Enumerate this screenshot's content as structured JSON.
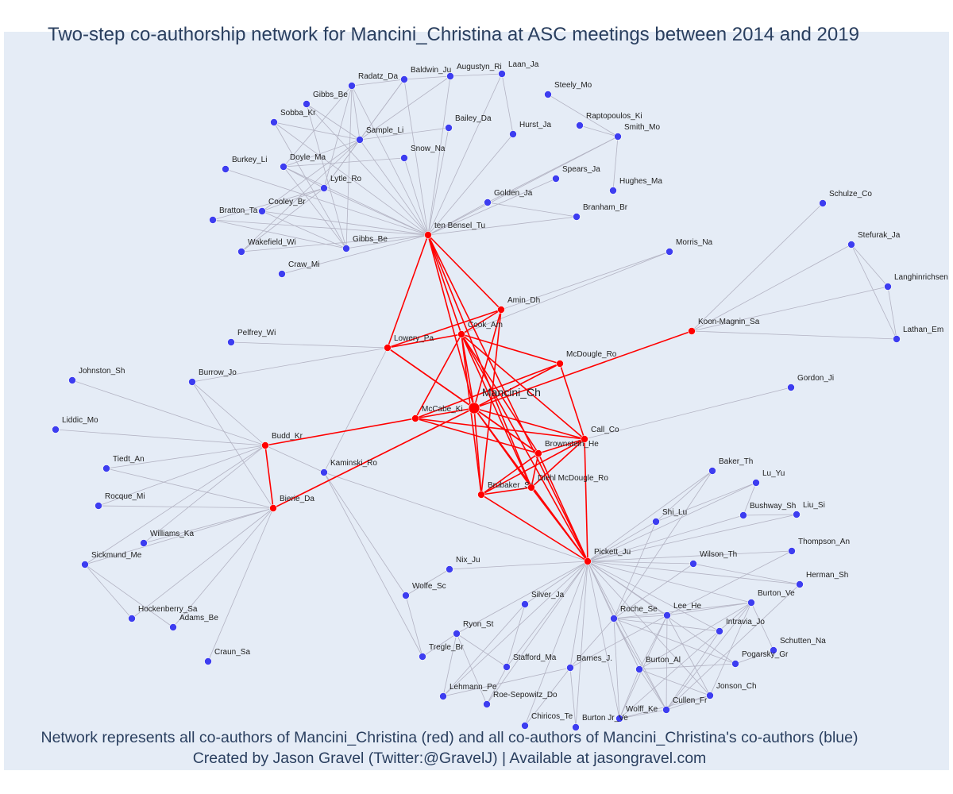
{
  "title": "Two-step co-authorship network for Mancini_Christina at ASC meetings between 2014 and 2019",
  "caption_line1": "Network represents all co-authors of Mancini_Christina (red) and all co-authors of Mancini_Christina's co-authors (blue)",
  "caption_line2": "Created by Jason Gravel (Twitter:@GravelJ) | Available at jasongravel.com",
  "colors": {
    "red": "#ff0000",
    "blue": "#3d3df0",
    "gray_edge": "#b3b3c3",
    "background": "#e5ecf6",
    "text": "#2a3f5f"
  },
  "center_node": "Mancini_Ch",
  "red_nodes": [
    "Mancini_Ch",
    "ten Bensel_Tu",
    "Amin_Dh",
    "Cook_Am",
    "Lowery_Pa",
    "McDougle_Ro",
    "Koon-Magnin_Sa",
    "McCabe_Ki",
    "Call_Co",
    "Brownstein_He",
    "Budd_Kr",
    "Bierie_Da",
    "Brubaker_Sa",
    "Diehl McDougle_Ro",
    "Pickett_Ju"
  ],
  "blue_nodes": [
    "Radatz_Da",
    "Baldwin_Ju",
    "Augustyn_Ri",
    "Laan_Ja",
    "Gibbs_Be",
    "Sobba_Kr",
    "Steely_Mo",
    "Raptopoulos_Ki",
    "Smith_Mo",
    "Bailey_Da",
    "Hurst_Ja",
    "Sample_Li",
    "Snow_Na",
    "Burkey_Li",
    "Doyle_Ma",
    "Spears_Ja",
    "Hughes_Ma",
    "Lytle_Ro",
    "Golden_Ja",
    "Cooley_Br",
    "Bratton_Ta",
    "Branham_Br",
    "Gibbs_Be (2)",
    "Wakefield_Wi",
    "Craw_Mi",
    "Morris_Na",
    "Schulze_Co",
    "Stefurak_Ja",
    "Langhinrichsen",
    "Lathan_Em",
    "Pelfrey_Wi",
    "Johnston_Sh",
    "Burrow_Jo",
    "Gordon_Ji",
    "Liddic_Mo",
    "Tiedt_An",
    "Kaminski_Ro",
    "Rocque_Mi",
    "Williams_Ka",
    "Sickmund_Me",
    "Hockenberry_Sa",
    "Adams_Be",
    "Craun_Sa",
    "Baker_Th",
    "Lu_Yu",
    "Bushway_Sh",
    "Liu_Si",
    "Shi_Lu",
    "Thompson_An",
    "Wilson_Th",
    "Herman_Sh",
    "Nix_Ju",
    "Wolfe_Sc",
    "Burton_Ve",
    "Silver_Ja",
    "Lee_He",
    "Roche_Se",
    "Intravia_Jo",
    "Ryon_St",
    "Schutten_Na",
    "Tregle_Br",
    "Pogarsky_Gr",
    "Stafford_Ma",
    "Barnes_J.",
    "Burton_Al",
    "Jonson_Ch",
    "Lehmann_Pe",
    "Roe-Sepowitz_Do",
    "Cullen_Fr",
    "Wolff_Ke",
    "Chiricos_Te",
    "Burton Jr_Ve"
  ],
  "node_labels": {
    "Gibbs_Be (2)": "Gibbs_Be"
  },
  "red_edges": [
    [
      "ten Bensel_Tu",
      "Mancini_Ch"
    ],
    [
      "ten Bensel_Tu",
      "Cook_Am"
    ],
    [
      "ten Bensel_Tu",
      "Amin_Dh"
    ],
    [
      "ten Bensel_Tu",
      "Lowery_Pa"
    ],
    [
      "ten Bensel_Tu",
      "Pickett_Ju"
    ],
    [
      "ten Bensel_Tu",
      "Diehl McDougle_Ro"
    ],
    [
      "Amin_Dh",
      "Lowery_Pa"
    ],
    [
      "Amin_Dh",
      "Cook_Am"
    ],
    [
      "Amin_Dh",
      "Mancini_Ch"
    ],
    [
      "Amin_Dh",
      "Brubaker_Sa"
    ],
    [
      "Lowery_Pa",
      "Cook_Am"
    ],
    [
      "Lowery_Pa",
      "Mancini_Ch"
    ],
    [
      "Lowery_Pa",
      "Brownstein_He"
    ],
    [
      "Cook_Am",
      "McDougle_Ro"
    ],
    [
      "Cook_Am",
      "Mancini_Ch"
    ],
    [
      "Cook_Am",
      "McCabe_Ki"
    ],
    [
      "Cook_Am",
      "Call_Co"
    ],
    [
      "Cook_Am",
      "Brownstein_He"
    ],
    [
      "Cook_Am",
      "Pickett_Ju"
    ],
    [
      "Cook_Am",
      "Diehl McDougle_Ro"
    ],
    [
      "Cook_Am",
      "Brubaker_Sa"
    ],
    [
      "McDougle_Ro",
      "Mancini_Ch"
    ],
    [
      "McDougle_Ro",
      "McCabe_Ki"
    ],
    [
      "McDougle_Ro",
      "Call_Co"
    ],
    [
      "Koon-Magnin_Sa",
      "Mancini_Ch"
    ],
    [
      "Mancini_Ch",
      "McCabe_Ki"
    ],
    [
      "Mancini_Ch",
      "Call_Co"
    ],
    [
      "Mancini_Ch",
      "Brownstein_He"
    ],
    [
      "Mancini_Ch",
      "Brubaker_Sa"
    ],
    [
      "Mancini_Ch",
      "Diehl McDougle_Ro"
    ],
    [
      "Mancini_Ch",
      "Pickett_Ju"
    ],
    [
      "Mancini_Ch",
      "Bierie_Da"
    ],
    [
      "McCabe_Ki",
      "Budd_Kr"
    ],
    [
      "McCabe_Ki",
      "Call_Co"
    ],
    [
      "McCabe_Ki",
      "Brownstein_He"
    ],
    [
      "Budd_Kr",
      "Bierie_Da"
    ],
    [
      "Call_Co",
      "Brownstein_He"
    ],
    [
      "Call_Co",
      "Brubaker_Sa"
    ],
    [
      "Call_Co",
      "Diehl McDougle_Ro"
    ],
    [
      "Call_Co",
      "Pickett_Ju"
    ],
    [
      "Brownstein_He",
      "Brubaker_Sa"
    ],
    [
      "Brownstein_He",
      "Diehl McDougle_Ro"
    ],
    [
      "Brownstein_He",
      "Pickett_Ju"
    ],
    [
      "Brubaker_Sa",
      "Diehl McDougle_Ro"
    ],
    [
      "Brubaker_Sa",
      "Pickett_Ju"
    ],
    [
      "Diehl McDougle_Ro",
      "Pickett_Ju"
    ]
  ],
  "gray_edges": [
    [
      "ten Bensel_Tu",
      "Radatz_Da"
    ],
    [
      "ten Bensel_Tu",
      "Baldwin_Ju"
    ],
    [
      "ten Bensel_Tu",
      "Augustyn_Ri"
    ],
    [
      "ten Bensel_Tu",
      "Laan_Ja"
    ],
    [
      "ten Bensel_Tu",
      "Gibbs_Be"
    ],
    [
      "ten Bensel_Tu",
      "Sobba_Kr"
    ],
    [
      "ten Bensel_Tu",
      "Hurst_Ja"
    ],
    [
      "ten Bensel_Tu",
      "Sample_Li"
    ],
    [
      "ten Bensel_Tu",
      "Snow_Na"
    ],
    [
      "ten Bensel_Tu",
      "Burkey_Li"
    ],
    [
      "ten Bensel_Tu",
      "Doyle_Ma"
    ],
    [
      "ten Bensel_Tu",
      "Lytle_Ro"
    ],
    [
      "ten Bensel_Tu",
      "Spears_Ja"
    ],
    [
      "ten Bensel_Tu",
      "Golden_Ja"
    ],
    [
      "ten Bensel_Tu",
      "Cooley_Br"
    ],
    [
      "ten Bensel_Tu",
      "Bratton_Ta"
    ],
    [
      "ten Bensel_Tu",
      "Branham_Br"
    ],
    [
      "ten Bensel_Tu",
      "Gibbs_Be (2)"
    ],
    [
      "ten Bensel_Tu",
      "Wakefield_Wi"
    ],
    [
      "ten Bensel_Tu",
      "Craw_Mi"
    ],
    [
      "ten Bensel_Tu",
      "Smith_Mo"
    ],
    [
      "ten Bensel_Tu",
      "Bailey_Da"
    ],
    [
      "Radatz_Da",
      "Sample_Li"
    ],
    [
      "Radatz_Da",
      "Lytle_Ro"
    ],
    [
      "Radatz_Da",
      "Gibbs_Be (2)"
    ],
    [
      "Radatz_Da",
      "Doyle_Ma"
    ],
    [
      "Radatz_Da",
      "Baldwin_Ju"
    ],
    [
      "Baldwin_Ju",
      "Sample_Li"
    ],
    [
      "Baldwin_Ju",
      "Lytle_Ro"
    ],
    [
      "Baldwin_Ju",
      "Augustyn_Ri"
    ],
    [
      "Augustyn_Ri",
      "Sample_Li"
    ],
    [
      "Augustyn_Ri",
      "Laan_Ja"
    ],
    [
      "Laan_Ja",
      "Hurst_Ja"
    ],
    [
      "Gibbs_Be",
      "Sample_Li"
    ],
    [
      "Gibbs_Be",
      "Gibbs_Be (2)"
    ],
    [
      "Sobba_Kr",
      "Sample_Li"
    ],
    [
      "Sobba_Kr",
      "Gibbs_Be (2)"
    ],
    [
      "Sample_Li",
      "Bailey_Da"
    ],
    [
      "Sample_Li",
      "Lytle_Ro"
    ],
    [
      "Sample_Li",
      "Cooley_Br"
    ],
    [
      "Sample_Li",
      "Doyle_Ma"
    ],
    [
      "Sample_Li",
      "Wakefield_Wi"
    ],
    [
      "Snow_Na",
      "Doyle_Ma"
    ],
    [
      "Doyle_Ma",
      "Gibbs_Be (2)"
    ],
    [
      "Doyle_Ma",
      "Lytle_Ro"
    ],
    [
      "Lytle_Ro",
      "Bratton_Ta"
    ],
    [
      "Lytle_Ro",
      "Wakefield_Wi"
    ],
    [
      "Lytle_Ro",
      "Cooley_Br"
    ],
    [
      "Cooley_Br",
      "Gibbs_Be (2)"
    ],
    [
      "Bratton_Ta",
      "Gibbs_Be (2)"
    ],
    [
      "Steely_Mo",
      "Smith_Mo"
    ],
    [
      "Raptopoulos_Ki",
      "Smith_Mo"
    ],
    [
      "Smith_Mo",
      "Golden_Ja"
    ],
    [
      "Smith_Mo",
      "Hughes_Ma"
    ],
    [
      "Golden_Ja",
      "Branham_Br"
    ],
    [
      "Amin_Dh",
      "Morris_Na"
    ],
    [
      "Cook_Am",
      "Morris_Na"
    ],
    [
      "Koon-Magnin_Sa",
      "Schulze_Co"
    ],
    [
      "Koon-Magnin_Sa",
      "Stefurak_Ja"
    ],
    [
      "Koon-Magnin_Sa",
      "Langhinrichsen"
    ],
    [
      "Koon-Magnin_Sa",
      "Lathan_Em"
    ],
    [
      "Stefurak_Ja",
      "Langhinrichsen"
    ],
    [
      "Stefurak_Ja",
      "Lathan_Em"
    ],
    [
      "Langhinrichsen",
      "Lathan_Em"
    ],
    [
      "Lowery_Pa",
      "Pelfrey_Wi"
    ],
    [
      "Lowery_Pa",
      "Burrow_Jo"
    ],
    [
      "Lowery_Pa",
      "Kaminski_Ro"
    ],
    [
      "Call_Co",
      "Gordon_Ji"
    ],
    [
      "Budd_Kr",
      "Johnston_Sh"
    ],
    [
      "Budd_Kr",
      "Liddic_Mo"
    ],
    [
      "Budd_Kr",
      "Tiedt_An"
    ],
    [
      "Budd_Kr",
      "Rocque_Mi"
    ],
    [
      "Budd_Kr",
      "Williams_Ka"
    ],
    [
      "Budd_Kr",
      "Sickmund_Me"
    ],
    [
      "Budd_Kr",
      "Burrow_Jo"
    ],
    [
      "Budd_Kr",
      "Kaminski_Ro"
    ],
    [
      "Bierie_Da",
      "Tiedt_An"
    ],
    [
      "Bierie_Da",
      "Rocque_Mi"
    ],
    [
      "Bierie_Da",
      "Williams_Ka"
    ],
    [
      "Bierie_Da",
      "Sickmund_Me"
    ],
    [
      "Bierie_Da",
      "Hockenberry_Sa"
    ],
    [
      "Bierie_Da",
      "Adams_Be"
    ],
    [
      "Bierie_Da",
      "Craun_Sa"
    ],
    [
      "Bierie_Da",
      "Burrow_Jo"
    ],
    [
      "Sickmund_Me",
      "Hockenberry_Sa"
    ],
    [
      "Sickmund_Me",
      "Adams_Be"
    ],
    [
      "Kaminski_Ro",
      "Wolfe_Sc"
    ],
    [
      "Kaminski_Ro",
      "Tregle_Br"
    ],
    [
      "Kaminski_Ro",
      "Pickett_Ju"
    ],
    [
      "Wolfe_Sc",
      "Nix_Ju"
    ],
    [
      "Wolfe_Sc",
      "Tregle_Br"
    ],
    [
      "Pickett_Ju",
      "Baker_Th"
    ],
    [
      "Pickett_Ju",
      "Lu_Yu"
    ],
    [
      "Pickett_Ju",
      "Bushway_Sh"
    ],
    [
      "Pickett_Ju",
      "Liu_Si"
    ],
    [
      "Pickett_Ju",
      "Shi_Lu"
    ],
    [
      "Pickett_Ju",
      "Thompson_An"
    ],
    [
      "Pickett_Ju",
      "Wilson_Th"
    ],
    [
      "Pickett_Ju",
      "Herman_Sh"
    ],
    [
      "Pickett_Ju",
      "Nix_Ju"
    ],
    [
      "Pickett_Ju",
      "Burton_Ve"
    ],
    [
      "Pickett_Ju",
      "Silver_Ja"
    ],
    [
      "Pickett_Ju",
      "Lee_He"
    ],
    [
      "Pickett_Ju",
      "Roche_Se"
    ],
    [
      "Pickett_Ju",
      "Intravia_Jo"
    ],
    [
      "Pickett_Ju",
      "Ryon_St"
    ],
    [
      "Pickett_Ju",
      "Pogarsky_Gr"
    ],
    [
      "Pickett_Ju",
      "Stafford_Ma"
    ],
    [
      "Pickett_Ju",
      "Barnes_J."
    ],
    [
      "Pickett_Ju",
      "Burton_Al"
    ],
    [
      "Pickett_Ju",
      "Jonson_Ch"
    ],
    [
      "Pickett_Ju",
      "Lehmann_Pe"
    ],
    [
      "Pickett_Ju",
      "Roe-Sepowitz_Do"
    ],
    [
      "Pickett_Ju",
      "Cullen_Fr"
    ],
    [
      "Pickett_Ju",
      "Wolff_Ke"
    ],
    [
      "Pickett_Ju",
      "Chiricos_Te"
    ],
    [
      "Pickett_Ju",
      "Burton Jr_Ve"
    ],
    [
      "Baker_Th",
      "Shi_Lu"
    ],
    [
      "Baker_Th",
      "Roche_Se"
    ],
    [
      "Lu_Yu",
      "Bushway_Sh"
    ],
    [
      "Lu_Yu",
      "Shi_Lu"
    ],
    [
      "Liu_Si",
      "Bushway_Sh"
    ],
    [
      "Shi_Lu",
      "Roche_Se"
    ],
    [
      "Thompson_An",
      "Lee_He"
    ],
    [
      "Wilson_Th",
      "Herman_Sh"
    ],
    [
      "Wilson_Th",
      "Roche_Se"
    ],
    [
      "Herman_Sh",
      "Cullen_Fr"
    ],
    [
      "Burton_Ve",
      "Roche_Se"
    ],
    [
      "Burton_Ve",
      "Lee_He"
    ],
    [
      "Burton_Ve",
      "Cullen_Fr"
    ],
    [
      "Burton_Ve",
      "Burton_Al"
    ],
    [
      "Burton_Ve",
      "Schutten_Na"
    ],
    [
      "Burton_Ve",
      "Jonson_Ch"
    ],
    [
      "Burton_Ve",
      "Wolff_Ke"
    ],
    [
      "Lee_He",
      "Roche_Se"
    ],
    [
      "Lee_He",
      "Burton_Al"
    ],
    [
      "Lee_He",
      "Cullen_Fr"
    ],
    [
      "Lee_He",
      "Jonson_Ch"
    ],
    [
      "Lee_He",
      "Barnes_J."
    ],
    [
      "Lee_He",
      "Wolff_Ke"
    ],
    [
      "Roche_Se",
      "Intravia_Jo"
    ],
    [
      "Roche_Se",
      "Pogarsky_Gr"
    ],
    [
      "Roche_Se",
      "Burton_Al"
    ],
    [
      "Roche_Se",
      "Cullen_Fr"
    ],
    [
      "Roche_Se",
      "Barnes_J."
    ],
    [
      "Roche_Se",
      "Wolff_Ke"
    ],
    [
      "Intravia_Jo",
      "Cullen_Fr"
    ],
    [
      "Schutten_Na",
      "Pogarsky_Gr"
    ],
    [
      "Pogarsky_Gr",
      "Burton_Al"
    ],
    [
      "Burton_Al",
      "Cullen_Fr"
    ],
    [
      "Burton_Al",
      "Jonson_Ch"
    ],
    [
      "Burton_Al",
      "Wolff_Ke"
    ],
    [
      "Cullen_Fr",
      "Jonson_Ch"
    ],
    [
      "Cullen_Fr",
      "Wolff_Ke"
    ],
    [
      "Jonson_Ch",
      "Wolff_Ke"
    ],
    [
      "Silver_Ja",
      "Stafford_Ma"
    ],
    [
      "Silver_Ja",
      "Lehmann_Pe"
    ],
    [
      "Ryon_St",
      "Stafford_Ma"
    ],
    [
      "Ryon_St",
      "Lehmann_Pe"
    ],
    [
      "Ryon_St",
      "Roe-Sepowitz_Do"
    ],
    [
      "Ryon_St",
      "Tregle_Br"
    ],
    [
      "Stafford_Ma",
      "Roe-Sepowitz_Do"
    ],
    [
      "Barnes_J.",
      "Burton Jr_Ve"
    ],
    [
      "Barnes_J.",
      "Lehmann_Pe"
    ],
    [
      "Barnes_J.",
      "Chiricos_Te"
    ]
  ]
}
